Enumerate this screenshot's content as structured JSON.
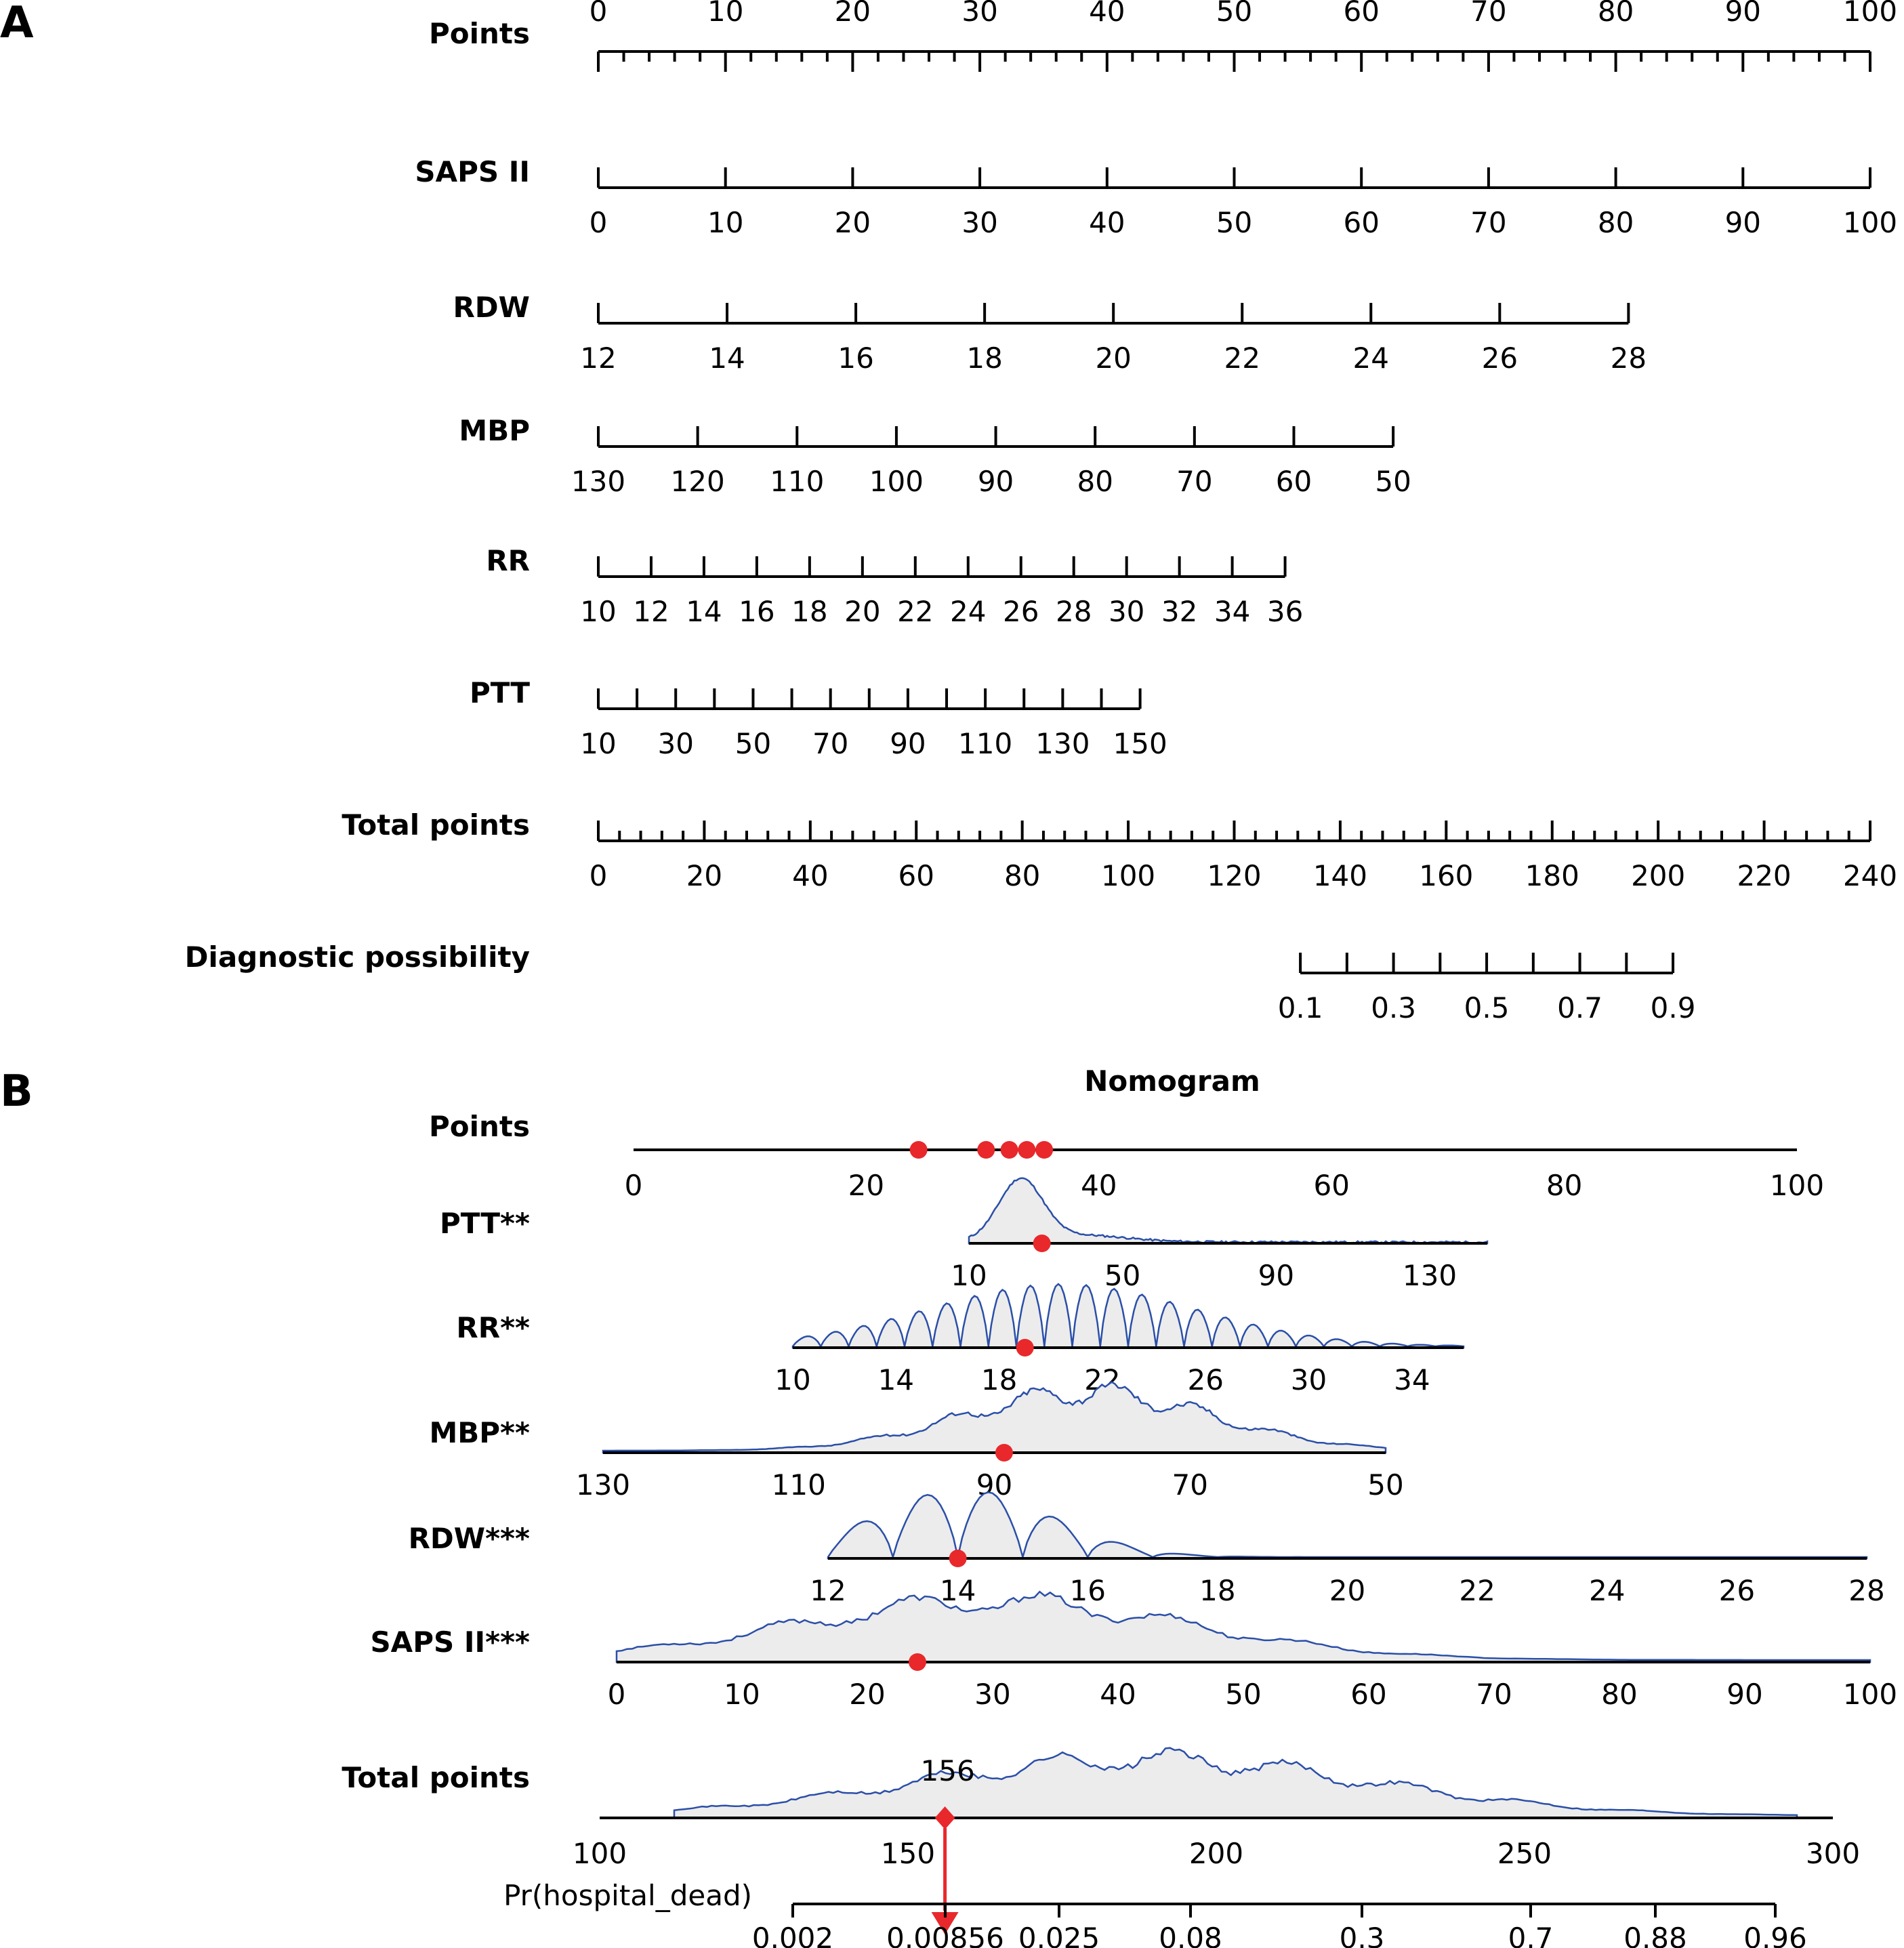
{
  "panels": {
    "a": {
      "letter": "A"
    },
    "b": {
      "letter": "B",
      "title": "Nomogram"
    }
  },
  "chart_data": [
    {
      "type": "nomogram",
      "panel": "A",
      "rows": [
        {
          "label": "Points",
          "ticks": [
            "0",
            "10",
            "20",
            "30",
            "40",
            "50",
            "60",
            "70",
            "80",
            "90",
            "100"
          ],
          "points_start": 0,
          "points_end": 100,
          "labels_above": true,
          "minor_per_major": 5
        },
        {
          "label": "SAPS II",
          "ticks": [
            "0",
            "10",
            "20",
            "30",
            "40",
            "50",
            "60",
            "70",
            "80",
            "90",
            "100"
          ],
          "points_start": 0,
          "points_end": 100
        },
        {
          "label": "RDW",
          "ticks": [
            "12",
            "14",
            "16",
            "18",
            "20",
            "22",
            "24",
            "26",
            "28"
          ],
          "points_start": 0,
          "points_end": 81
        },
        {
          "label": "MBP",
          "ticks": [
            "130",
            "120",
            "110",
            "100",
            "90",
            "80",
            "70",
            "60",
            "50"
          ],
          "points_start": 0,
          "points_end": 62.5
        },
        {
          "label": "RR",
          "ticks": [
            "10",
            "12",
            "14",
            "16",
            "18",
            "20",
            "22",
            "24",
            "26",
            "28",
            "30",
            "32",
            "34",
            "36"
          ],
          "points_start": 0,
          "points_end": 54
        },
        {
          "label": "PTT",
          "tick_values": [
            10,
            20,
            30,
            40,
            50,
            60,
            70,
            80,
            90,
            100,
            110,
            120,
            130,
            140,
            150
          ],
          "ticks": [
            "10",
            "30",
            "50",
            "70",
            "90",
            "110",
            "130",
            "150"
          ],
          "points_start": 0,
          "points_end": 42.6
        },
        {
          "label": "Total points",
          "ticks": [
            "0",
            "20",
            "40",
            "60",
            "80",
            "100",
            "120",
            "140",
            "160",
            "180",
            "200",
            "220",
            "240"
          ],
          "points_start": 0,
          "points_end": 100,
          "minor_per_major": 5
        },
        {
          "label": "Diagnostic possibility",
          "tick_values": [
            0.1,
            0.2,
            0.3,
            0.4,
            0.5,
            0.6,
            0.7,
            0.8,
            0.9
          ],
          "ticks": [
            "0.1",
            "0.3",
            "0.5",
            "0.7",
            "0.9"
          ],
          "points_start": 55.2,
          "points_end": 84.5
        }
      ]
    },
    {
      "type": "nomogram",
      "panel": "B",
      "title": "Nomogram",
      "points_axis": {
        "label": "Points",
        "ticks": [
          "0",
          "20",
          "40",
          "60",
          "80",
          "100"
        ],
        "selected_points": [
          24.5,
          30.3,
          32.3,
          33.8,
          35.3
        ]
      },
      "rows": [
        {
          "label": "PTT**",
          "ticks": [
            "10",
            "50",
            "90",
            "130"
          ],
          "tick_values": [
            10,
            50,
            90,
            130
          ],
          "axis_min": 10,
          "axis_max": 145,
          "selected_value": 29
        },
        {
          "label": "RR**",
          "ticks": [
            "10",
            "14",
            "18",
            "22",
            "26",
            "30",
            "34"
          ],
          "tick_values": [
            10,
            14,
            18,
            22,
            26,
            30,
            34
          ],
          "axis_min": 10,
          "axis_max": 36,
          "selected_value": 19
        },
        {
          "label": "MBP**",
          "ticks": [
            "130",
            "110",
            "90",
            "70",
            "50"
          ],
          "tick_values": [
            130,
            110,
            90,
            70,
            50
          ],
          "axis_min": 50,
          "axis_max": 130,
          "selected_value": 89
        },
        {
          "label": "RDW***",
          "ticks": [
            "12",
            "14",
            "16",
            "18",
            "20",
            "22",
            "24",
            "26",
            "28"
          ],
          "tick_values": [
            12,
            14,
            16,
            18,
            20,
            22,
            24,
            26,
            28
          ],
          "axis_min": 12,
          "axis_max": 28,
          "selected_value": 14
        },
        {
          "label": "SAPS II***",
          "ticks": [
            "0",
            "10",
            "20",
            "30",
            "40",
            "50",
            "60",
            "70",
            "80",
            "90",
            "100"
          ],
          "tick_values": [
            0,
            10,
            20,
            30,
            40,
            50,
            60,
            70,
            80,
            90,
            100
          ],
          "axis_min": 0,
          "axis_max": 100,
          "selected_value": 24
        }
      ],
      "total_points": {
        "label": "Total points",
        "ticks": [
          "100",
          "150",
          "200",
          "250",
          "300"
        ],
        "tick_values": [
          100,
          150,
          200,
          250,
          300
        ],
        "selected_value": 156,
        "selected_label": "156"
      },
      "probability": {
        "label": "Pr(hospital_dead)",
        "ticks": [
          "0.002",
          "0.00856",
          "0.025",
          "0.08",
          "0.3",
          "0.7",
          "0.88",
          "0.96"
        ],
        "selected_value": 0.00856
      },
      "colors": {
        "marker": "#e8282b",
        "density_line": "#2b4fa8",
        "density_fill": "#ececec"
      }
    }
  ]
}
